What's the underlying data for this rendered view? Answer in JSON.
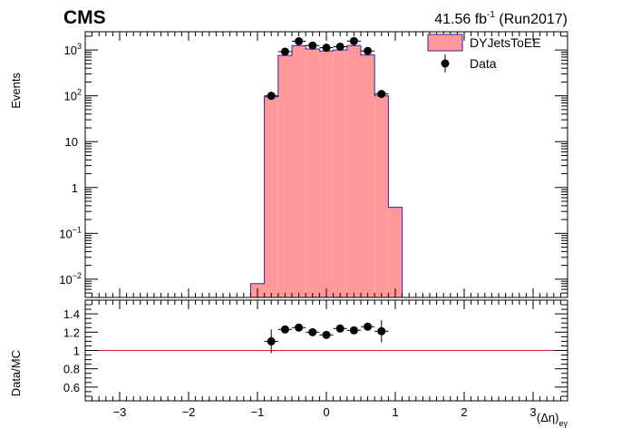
{
  "chart_data": [
    {
      "type": "bar",
      "panel": "main",
      "title_left": "CMS",
      "title_right_lumi": "41.56 fb",
      "title_right_lumi_sup": "-1",
      "title_right_run": " (Run2017)",
      "ylabel": "Events",
      "yscale": "log",
      "xlim": [
        -3.5,
        3.5
      ],
      "ylim": [
        0.004,
        2500
      ],
      "bin_width": 0.2,
      "y_tick_labels": [
        {
          "value": 0.01,
          "base": "10",
          "sup": "−2"
        },
        {
          "value": 0.1,
          "base": "10",
          "sup": "−1"
        },
        {
          "value": 1,
          "base": "1",
          "sup": ""
        },
        {
          "value": 10,
          "base": "10",
          "sup": ""
        },
        {
          "value": 100,
          "base": "10",
          "sup": "2"
        },
        {
          "value": 1000,
          "base": "10",
          "sup": "3"
        }
      ],
      "legend": {
        "placement": "top-right",
        "entries": [
          {
            "label": "DYJetsToEE",
            "kind": "fill"
          },
          {
            "label": "Data",
            "kind": "marker"
          }
        ]
      },
      "series": [
        {
          "name": "DYJetsToEE",
          "kind": "hist",
          "color": "#ff9999",
          "edge_color": "#3a1cb0",
          "bin_lows": [
            -1.1,
            -0.9,
            -0.7,
            -0.5,
            -0.3,
            -0.1,
            0.1,
            0.3,
            0.5,
            0.7,
            0.9
          ],
          "values": [
            0.008,
            95,
            760,
            1250,
            1050,
            950,
            1000,
            1250,
            780,
            100,
            0.37
          ]
        },
        {
          "name": "Data",
          "kind": "points",
          "color": "#000000",
          "x": [
            -0.8,
            -0.6,
            -0.4,
            -0.2,
            0.0,
            0.2,
            0.4,
            0.6,
            0.8
          ],
          "values": [
            100,
            920,
            1550,
            1250,
            1120,
            1180,
            1560,
            950,
            110
          ]
        }
      ]
    },
    {
      "type": "scatter",
      "panel": "ratio",
      "ylabel": "Data/MC",
      "xlabel": "(Δη)",
      "xlabel_sub": "eγ",
      "xlim": [
        -3.5,
        3.5
      ],
      "ylim": [
        0.45,
        1.55
      ],
      "x_tick_labels": [
        "−3",
        "−2",
        "−1",
        "0",
        "1",
        "2",
        "3"
      ],
      "x_tick_values": [
        -3,
        -2,
        -1,
        0,
        1,
        2,
        3
      ],
      "y_tick_labels": [
        "0.6",
        "0.8",
        "1",
        "1.2",
        "1.4"
      ],
      "y_tick_values": [
        0.6,
        0.8,
        1.0,
        1.2,
        1.4
      ],
      "reference_line": {
        "value": 1.0,
        "color": "#cc2222"
      },
      "points": {
        "x": [
          -0.8,
          -0.6,
          -0.4,
          -0.2,
          0.0,
          0.2,
          0.4,
          0.6,
          0.8
        ],
        "values": [
          1.1,
          1.23,
          1.25,
          1.2,
          1.17,
          1.24,
          1.22,
          1.26,
          1.21
        ],
        "errors": [
          0.13,
          0.04,
          0.03,
          0.03,
          0.03,
          0.03,
          0.03,
          0.04,
          0.12
        ]
      }
    }
  ]
}
